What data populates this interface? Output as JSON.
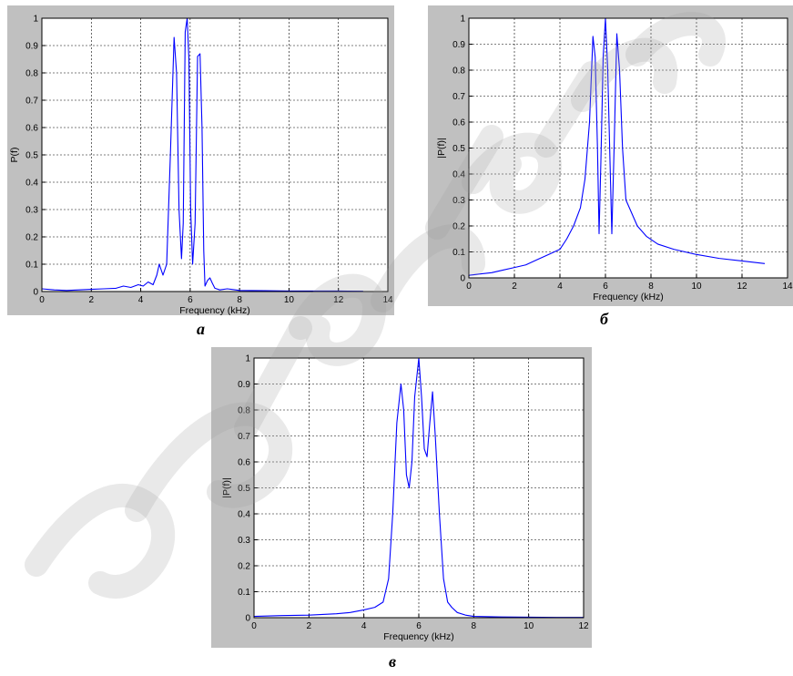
{
  "colors": {
    "line": "#0000ff",
    "frame": "#c0c0c0",
    "grid": "#000000"
  },
  "chart_data": [
    {
      "type": "line",
      "panel": "a",
      "caption": "а",
      "xlabel": "Frequency (kHz)",
      "ylabel": "P(f)",
      "xlim": [
        0,
        14
      ],
      "ylim": [
        0,
        1
      ],
      "xticks": [
        "0",
        "2",
        "4",
        "6",
        "8",
        "10",
        "12",
        "14"
      ],
      "yticks": [
        "0",
        "0.1",
        "0.2",
        "0.3",
        "0.4",
        "0.5",
        "0.6",
        "0.7",
        "0.8",
        "0.9",
        "1"
      ],
      "grid": true,
      "series": [
        {
          "x": [
            0,
            0.5,
            1,
            1.5,
            2,
            2.5,
            3,
            3.3,
            3.6,
            3.9,
            4.1,
            4.3,
            4.5,
            4.65,
            4.75,
            4.9,
            5.05,
            5.2,
            5.35,
            5.45,
            5.55,
            5.65,
            5.72,
            5.8,
            5.88,
            5.95,
            6.02,
            6.1,
            6.2,
            6.3,
            6.4,
            6.48,
            6.55,
            6.6,
            6.7,
            6.8,
            6.9,
            7.0,
            7.2,
            7.5,
            8,
            9,
            10,
            11,
            12,
            13
          ],
          "y": [
            0.01,
            0.006,
            0.004,
            0.006,
            0.008,
            0.01,
            0.012,
            0.02,
            0.015,
            0.025,
            0.02,
            0.035,
            0.025,
            0.06,
            0.1,
            0.06,
            0.1,
            0.5,
            0.93,
            0.8,
            0.3,
            0.12,
            0.25,
            0.95,
            1.0,
            0.85,
            0.3,
            0.1,
            0.25,
            0.86,
            0.87,
            0.6,
            0.15,
            0.02,
            0.04,
            0.05,
            0.03,
            0.012,
            0.006,
            0.01,
            0.004,
            0.003,
            0.002,
            0.002,
            0.002,
            0.001
          ]
        }
      ]
    },
    {
      "type": "line",
      "panel": "b",
      "caption": "б",
      "xlabel": "Frequency (kHz)",
      "ylabel": "|P(f)|",
      "xlim": [
        0,
        14
      ],
      "ylim": [
        0,
        1
      ],
      "xticks": [
        "0",
        "2",
        "4",
        "6",
        "8",
        "10",
        "12",
        "14"
      ],
      "yticks": [
        "0",
        "0.1",
        "0.2",
        "0.3",
        "0.4",
        "0.5",
        "0.6",
        "0.7",
        "0.8",
        "0.9",
        "1"
      ],
      "grid": true,
      "series": [
        {
          "x": [
            0,
            0.5,
            1,
            1.5,
            2,
            2.5,
            3,
            3.5,
            4,
            4.3,
            4.6,
            4.9,
            5.1,
            5.3,
            5.45,
            5.55,
            5.65,
            5.72,
            5.8,
            5.9,
            6.0,
            6.1,
            6.2,
            6.28,
            6.38,
            6.5,
            6.62,
            6.75,
            6.9,
            7.1,
            7.4,
            7.8,
            8.3,
            9,
            10,
            11,
            12,
            13
          ],
          "y": [
            0.01,
            0.015,
            0.02,
            0.03,
            0.04,
            0.05,
            0.07,
            0.09,
            0.11,
            0.15,
            0.2,
            0.27,
            0.38,
            0.6,
            0.93,
            0.85,
            0.5,
            0.17,
            0.45,
            0.85,
            1.0,
            0.8,
            0.45,
            0.17,
            0.5,
            0.94,
            0.8,
            0.5,
            0.3,
            0.26,
            0.2,
            0.16,
            0.13,
            0.11,
            0.09,
            0.075,
            0.065,
            0.055
          ]
        }
      ]
    },
    {
      "type": "line",
      "panel": "c",
      "caption": "в",
      "xlabel": "Frequency (kHz)",
      "ylabel": "|P(f)|",
      "xlim": [
        0,
        12
      ],
      "ylim": [
        0,
        1
      ],
      "xticks": [
        "0",
        "2",
        "4",
        "6",
        "8",
        "10",
        "12"
      ],
      "yticks": [
        "0",
        "0.1",
        "0.2",
        "0.3",
        "0.4",
        "0.5",
        "0.6",
        "0.7",
        "0.8",
        "0.9",
        "1"
      ],
      "grid": true,
      "series": [
        {
          "x": [
            0,
            1,
            2,
            3,
            3.5,
            4,
            4.4,
            4.7,
            4.9,
            5.05,
            5.2,
            5.35,
            5.45,
            5.55,
            5.65,
            5.75,
            5.85,
            6.0,
            6.1,
            6.2,
            6.3,
            6.4,
            6.5,
            6.6,
            6.75,
            6.9,
            7.05,
            7.2,
            7.4,
            7.7,
            8,
            9,
            10,
            11,
            12
          ],
          "y": [
            0.005,
            0.008,
            0.01,
            0.015,
            0.02,
            0.03,
            0.04,
            0.06,
            0.15,
            0.4,
            0.75,
            0.9,
            0.8,
            0.55,
            0.5,
            0.6,
            0.85,
            1.0,
            0.85,
            0.65,
            0.62,
            0.75,
            0.87,
            0.7,
            0.4,
            0.15,
            0.06,
            0.04,
            0.02,
            0.01,
            0.005,
            0.003,
            0.002,
            0.001,
            0.001
          ]
        }
      ]
    }
  ]
}
